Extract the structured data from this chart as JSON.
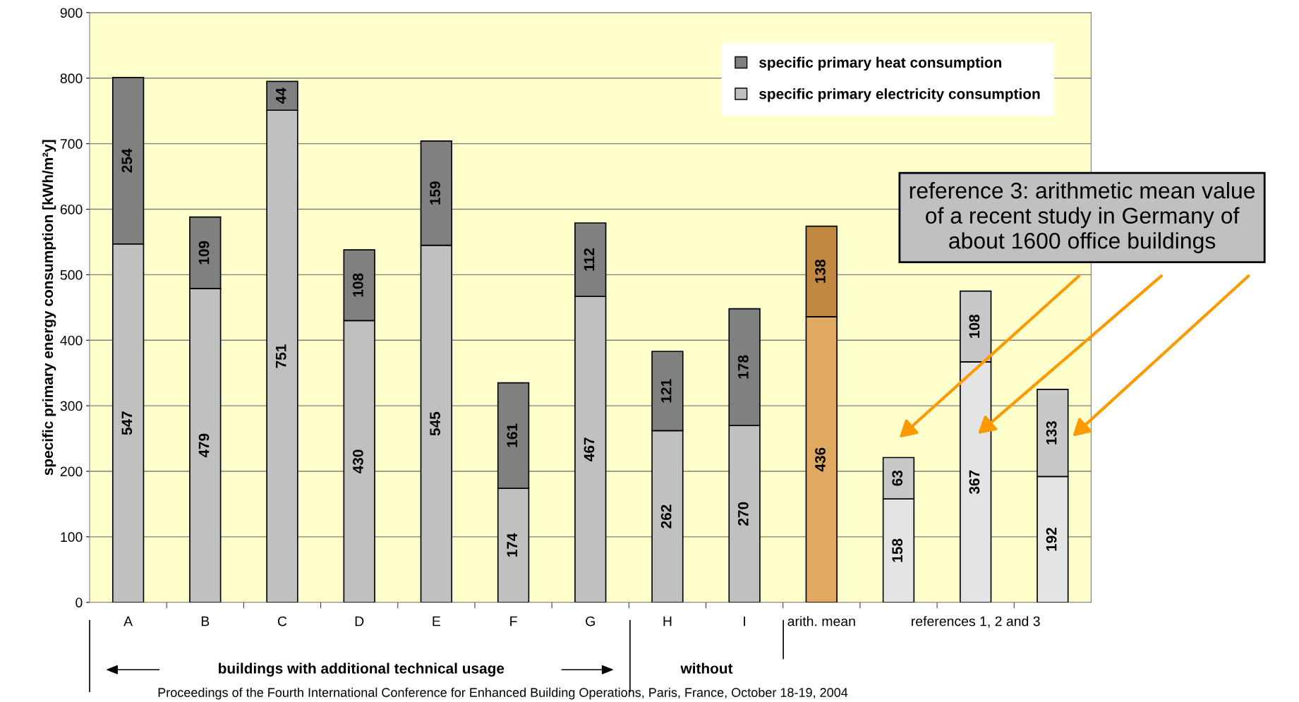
{
  "chart_data": {
    "type": "bar",
    "stacked": true,
    "data_labels": true,
    "legend": "top right",
    "grid": "y",
    "ylabel": "specific primary energy consumption [kWh/m²y]",
    "categories": [
      "A",
      "B",
      "C",
      "D",
      "E",
      "F",
      "G",
      "H",
      "I",
      "arith. mean",
      null,
      "references 1, 2 and 3",
      null
    ],
    "series": [
      {
        "name": "specific primary electricity consumption",
        "color": "#c0c0c0",
        "colors": [
          "#c0c0c0",
          "#c0c0c0",
          "#c0c0c0",
          "#c0c0c0",
          "#c0c0c0",
          "#c0c0c0",
          "#c0c0c0",
          "#c0c0c0",
          "#c0c0c0",
          "#e0a860",
          "#e4e4e4",
          "#e4e4e4",
          "#e4e4e4"
        ],
        "values": [
          547,
          479,
          751,
          430,
          545,
          174,
          467,
          262,
          270,
          436,
          158,
          367,
          192
        ]
      },
      {
        "name": "specific primary heat consumption",
        "color": "#808080",
        "colors": [
          "#808080",
          "#808080",
          "#808080",
          "#808080",
          "#808080",
          "#808080",
          "#808080",
          "#808080",
          "#808080",
          "#c08840",
          "#c8c8c8",
          "#c8c8c8",
          "#c8c8c8"
        ],
        "values": [
          254,
          109,
          44,
          108,
          159,
          161,
          112,
          121,
          178,
          138,
          63,
          108,
          133
        ]
      }
    ],
    "ylim": [
      0,
      900
    ],
    "yticks": [
      0,
      100,
      200,
      300,
      400,
      500,
      600,
      700,
      800,
      900
    ],
    "annotations": [
      "reference 3: arithmetic mean value\nof a recent study in Germany of\nabout 1600 office buildings",
      "buildings with additional technical usage",
      "without",
      "Proceedings of the Fourth International Conference for Enhanced Building Operations, Paris, France, October 18-19, 2004"
    ]
  }
}
